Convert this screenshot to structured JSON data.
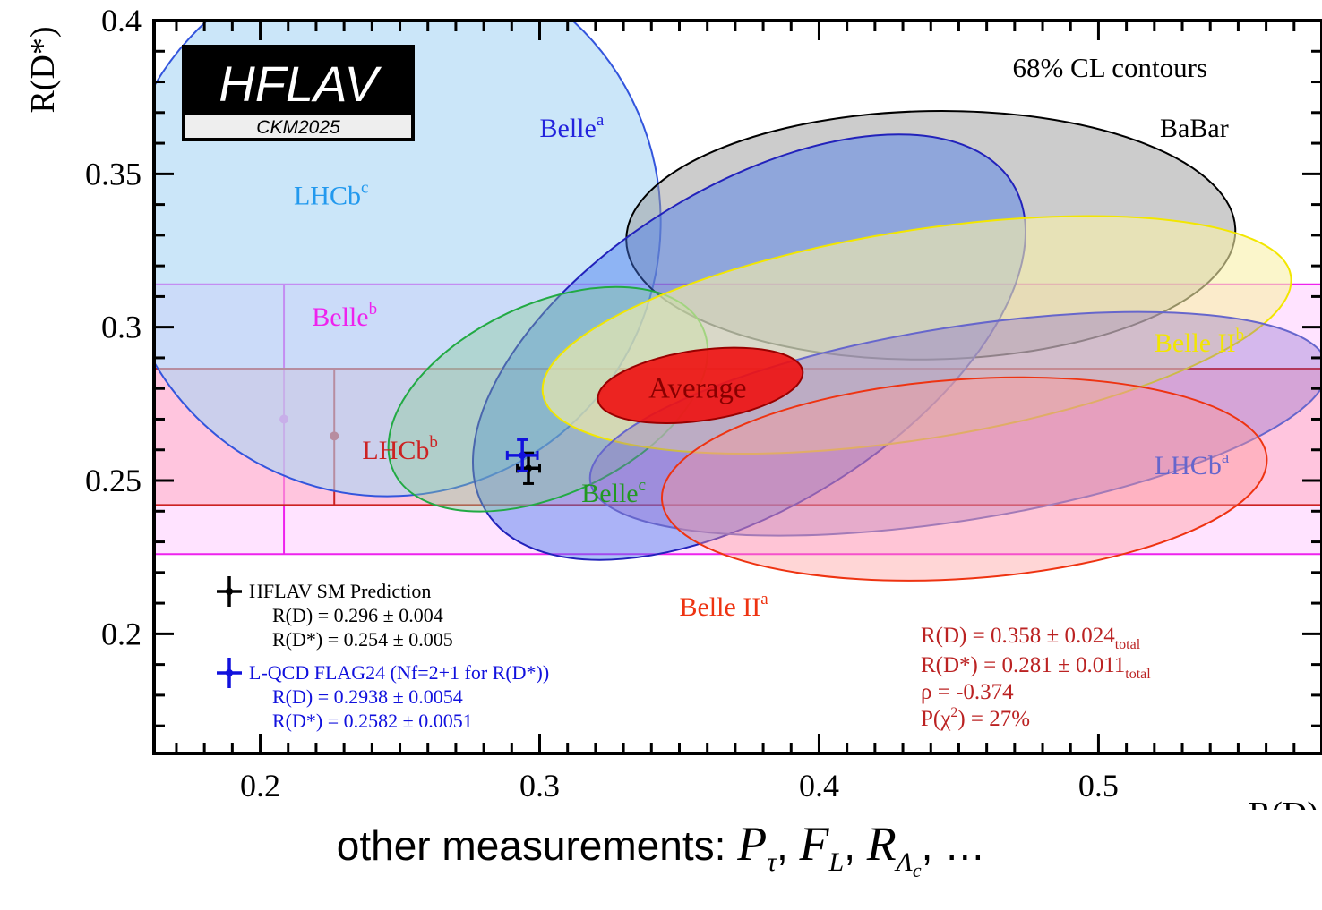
{
  "chart_data": {
    "type": "scatter",
    "title": "",
    "xlabel": "R(D)",
    "ylabel": "R(D*)",
    "xlim": [
      0.162,
      0.58
    ],
    "ylim": [
      0.161,
      0.4
    ],
    "xticks": [
      0.2,
      0.3,
      0.4,
      0.5
    ],
    "xtick_labels": [
      "0.2",
      "0.3",
      "0.4",
      "0.5"
    ],
    "yticks": [
      0.2,
      0.25,
      0.3,
      0.35,
      0.4
    ],
    "ytick_labels": [
      "0.2",
      "0.25",
      "0.3",
      "0.35",
      "0.4"
    ],
    "grid": false,
    "logo": {
      "main": "HFLAV",
      "sub": "CKM2025"
    },
    "contour_note": "68% CL contours",
    "bands": [
      {
        "name": "Belle",
        "sup": "b",
        "color": "#ee22ee",
        "fill": "#ffccff",
        "center": 0.27,
        "low": 0.226,
        "high": 0.314,
        "marker_x": 0.2085
      },
      {
        "name": "LHCb",
        "sup": "b",
        "color": "#cc2222",
        "fill": "#ffb0c8",
        "center": 0.2645,
        "low": 0.242,
        "high": 0.2865,
        "marker_x": 0.2265
      }
    ],
    "ellipses": [
      {
        "name": "LHCb",
        "sup": "c",
        "center": [
          0.246,
          0.334
        ],
        "width": 0.196,
        "height": 0.177,
        "angle": -69,
        "fill": "#a8d6f5",
        "fill_opacity": 0.6,
        "stroke": "#3355dd",
        "label_xy": [
          0.212,
          0.34
        ],
        "label_color": "#2299ee"
      },
      {
        "name": "BaBar",
        "sup": "",
        "center": [
          0.44,
          0.33
        ],
        "width": 0.218,
        "height": 0.081,
        "angle": -1,
        "fill": "#999999",
        "fill_opacity": 0.5,
        "stroke": "#000000",
        "label_xy": [
          0.522,
          0.362
        ],
        "label_color": "#000000"
      },
      {
        "name": "Belle",
        "sup": "a",
        "center": [
          0.375,
          0.2935
        ],
        "width": 0.222,
        "height": 0.104,
        "angle": -32,
        "fill": "#4477ee",
        "fill_opacity": 0.45,
        "stroke": "#2222bb",
        "label_xy": [
          0.3,
          0.362
        ],
        "label_color": "#2222dd"
      },
      {
        "name": "Belle",
        "sup": "c",
        "center": [
          0.303,
          0.2765
        ],
        "width": 0.122,
        "height": 0.062,
        "angle": -25,
        "fill": "#88cc99",
        "fill_opacity": 0.4,
        "stroke": "#22aa44",
        "label_xy": [
          0.315,
          0.243
        ],
        "label_color": "#229922"
      },
      {
        "name": "Belle II",
        "sup": "b",
        "center": [
          0.435,
          0.2975
        ],
        "width": 0.271,
        "height": 0.068,
        "angle": -9,
        "fill": "#f8f0a8",
        "fill_opacity": 0.6,
        "stroke": "#f2e600",
        "label_xy": [
          0.52,
          0.292
        ],
        "label_color": "#f2e600"
      },
      {
        "name": "LHCb",
        "sup": "a",
        "center": [
          0.45,
          0.2685
        ],
        "width": 0.267,
        "height": 0.063,
        "angle": -9,
        "fill": "#8866cc",
        "fill_opacity": 0.35,
        "stroke": "#6666cc",
        "label_xy": [
          0.52,
          0.252
        ],
        "label_color": "#6666cc"
      },
      {
        "name": "Belle II",
        "sup": "a",
        "center": [
          0.452,
          0.2505
        ],
        "width": 0.217,
        "height": 0.065,
        "angle": -4,
        "fill": "#ff9999",
        "fill_opacity": 0.4,
        "stroke": "#ee3311",
        "label_xy": [
          0.35,
          0.206
        ],
        "label_color": "#ee3311"
      },
      {
        "name": "Average",
        "sup": "",
        "center": [
          0.3575,
          0.281
        ],
        "width": 0.074,
        "height": 0.023,
        "angle": -8,
        "fill": "#ee1111",
        "fill_opacity": 0.9,
        "stroke": "#990000",
        "label_xy": [
          0.339,
          0.277
        ],
        "label_color": "#880000"
      }
    ],
    "points": [
      {
        "name": "HFLAV SM Prediction",
        "x": 0.296,
        "xerr": 0.004,
        "y": 0.254,
        "yerr": 0.005,
        "color": "#000000"
      },
      {
        "name": "L-QCD FLAG24 (Nf=2+1 for R(D*))",
        "x": 0.2938,
        "xerr": 0.0054,
        "y": 0.2582,
        "yerr": 0.0051,
        "color": "#1111dd"
      }
    ],
    "legend": [
      {
        "label": "HFLAV SM Prediction",
        "line1": "R(D) = 0.296 ± 0.004",
        "line2": "R(D*) = 0.254 ± 0.005",
        "color": "#000000"
      },
      {
        "label": "L-QCD FLAG24 (Nf=2+1 for R(D*))",
        "line1": "R(D) = 0.2938 ± 0.0054",
        "line2": "R(D*) = 0.2582 ± 0.0051",
        "color": "#1111dd"
      }
    ],
    "average": {
      "rd": "R(D) = 0.358 ± 0.024",
      "rds": "R(D*) = 0.281 ± 0.011",
      "sub": "total",
      "rho": "ρ = -0.374",
      "pchi_prefix": "P(χ",
      "pchi_sup": "2",
      "pchi_suffix": ") = 27%",
      "color": "#bb2222"
    }
  },
  "caption": {
    "prefix": "other measurements:",
    "p": "P",
    "p_sub": "τ",
    "f": "F",
    "f_sub": "L",
    "r": "R",
    "r_sub": "Λ",
    "r_subsub": "c",
    "ellipsis": "…"
  }
}
